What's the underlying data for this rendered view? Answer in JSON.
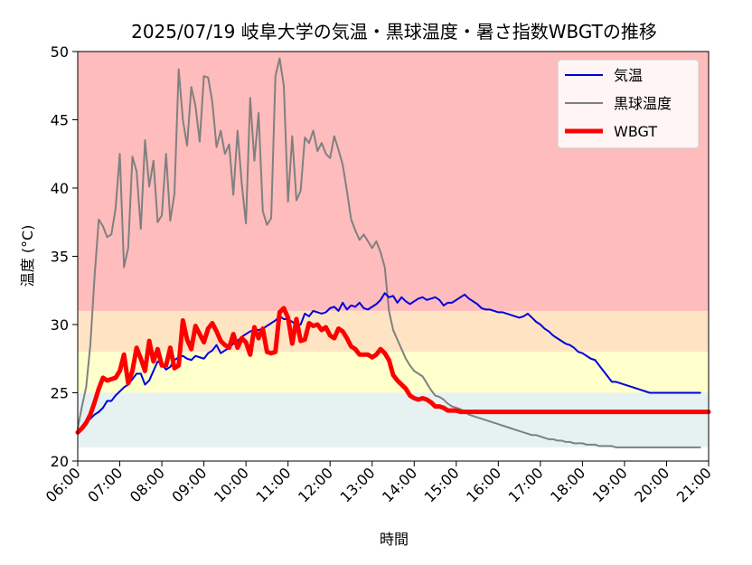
{
  "chart_data": {
    "type": "line",
    "title": "2025/07/19 岐阜大学の気温・黒球温度・暑さ指数WBGTの推移",
    "xlabel": "時間",
    "ylabel": "温度 (°C)",
    "ylim": [
      20,
      50
    ],
    "yticks": [
      "20",
      "25",
      "30",
      "35",
      "40",
      "45",
      "50"
    ],
    "xticks": [
      "06:00",
      "07:00",
      "08:00",
      "09:00",
      "10:00",
      "11:00",
      "12:00",
      "13:00",
      "14:00",
      "15:00",
      "16:00",
      "17:00",
      "18:00",
      "19:00",
      "20:00",
      "21:00"
    ],
    "xrange_hours": [
      6,
      21
    ],
    "x_hours": [
      6.0,
      6.1,
      6.2,
      6.3,
      6.4,
      6.5,
      6.6,
      6.7,
      6.8,
      6.9,
      7.0,
      7.1,
      7.2,
      7.3,
      7.4,
      7.5,
      7.6,
      7.7,
      7.8,
      7.9,
      8.0,
      8.1,
      8.2,
      8.3,
      8.4,
      8.5,
      8.6,
      8.7,
      8.8,
      8.9,
      9.0,
      9.1,
      9.2,
      9.3,
      9.4,
      9.5,
      9.6,
      9.7,
      9.8,
      9.9,
      10.0,
      10.1,
      10.2,
      10.3,
      10.4,
      10.5,
      10.6,
      10.7,
      10.8,
      10.9,
      11.0,
      11.1,
      11.2,
      11.3,
      11.4,
      11.5,
      11.6,
      11.7,
      11.8,
      11.9,
      12.0,
      12.1,
      12.2,
      12.3,
      12.4,
      12.5,
      12.6,
      12.7,
      12.8,
      12.9,
      13.0,
      13.1,
      13.2,
      13.3,
      13.4,
      13.5,
      13.6,
      13.7,
      13.8,
      13.9,
      14.0,
      14.1,
      14.2,
      14.3,
      14.4,
      14.5,
      14.6,
      14.7,
      14.8,
      14.9,
      15.0,
      15.1,
      15.2,
      15.3,
      15.4,
      15.5,
      15.6,
      15.7,
      15.8,
      15.9,
      16.0,
      16.1,
      16.2,
      16.3,
      16.4,
      16.5,
      16.6,
      16.7,
      16.8,
      16.9,
      17.0,
      17.1,
      17.2,
      17.3,
      17.4,
      17.5,
      17.6,
      17.7,
      17.8,
      17.9,
      18.0,
      18.1,
      18.2,
      18.3,
      18.4,
      18.5,
      18.6,
      18.7,
      18.8,
      18.9,
      19.0,
      19.1,
      19.2,
      19.3,
      19.4,
      19.5,
      19.6,
      19.7,
      19.8,
      19.9,
      20.0,
      20.1,
      20.2,
      20.3,
      20.4,
      20.5,
      20.6,
      20.7,
      20.8,
      20.9,
      21.0
    ],
    "zones": [
      {
        "from": 21,
        "to": 25,
        "color": "#e6f2f2"
      },
      {
        "from": 25,
        "to": 28,
        "color": "#ffffcc"
      },
      {
        "from": 28,
        "to": 31,
        "color": "#ffe4c4"
      },
      {
        "from": 31,
        "to": 50,
        "color": "#ffbcbc"
      }
    ],
    "legend_position": "top-right",
    "series": [
      {
        "name": "気温",
        "color": "#0000dd",
        "width": 2,
        "values": [
          22.0,
          22.4,
          22.8,
          23.1,
          23.4,
          23.6,
          23.9,
          24.4,
          24.4,
          24.8,
          25.1,
          25.4,
          25.6,
          26.0,
          26.4,
          26.4,
          25.6,
          25.9,
          26.6,
          27.3,
          27.1,
          26.7,
          26.9,
          27.4,
          27.6,
          27.7,
          27.5,
          27.4,
          27.7,
          27.6,
          27.5,
          27.9,
          28.1,
          28.5,
          27.9,
          28.1,
          28.3,
          28.6,
          28.8,
          29.1,
          29.3,
          29.5,
          29.6,
          29.6,
          29.7,
          29.9,
          30.1,
          30.3,
          30.6,
          30.4,
          30.4,
          30.2,
          30.0,
          30.0,
          30.8,
          30.6,
          31.0,
          30.9,
          30.8,
          30.9,
          31.2,
          31.3,
          31.0,
          31.6,
          31.1,
          31.4,
          31.3,
          31.6,
          31.2,
          31.1,
          31.3,
          31.5,
          31.8,
          32.3,
          32.0,
          32.1,
          31.6,
          32.0,
          31.7,
          31.5,
          31.7,
          31.9,
          32.0,
          31.8,
          31.9,
          32.0,
          31.8,
          31.4,
          31.6,
          31.6,
          31.8,
          32.0,
          32.2,
          31.9,
          31.7,
          31.5,
          31.2,
          31.1,
          31.1,
          31.0,
          30.9,
          30.9,
          30.8,
          30.7,
          30.6,
          30.5,
          30.6,
          30.8,
          30.5,
          30.2,
          30.0,
          29.7,
          29.5,
          29.2,
          29.0,
          28.8,
          28.6,
          28.5,
          28.3,
          28.0,
          27.9,
          27.7,
          27.5,
          27.4,
          27.0,
          26.6,
          26.2,
          25.8,
          25.8,
          25.7,
          25.6,
          25.5,
          25.4,
          25.3,
          25.2,
          25.1,
          25.0,
          25.0,
          25.0,
          25.0,
          25.0,
          25.0,
          25.0,
          25.0,
          25.0,
          25.0,
          25.0,
          25.0,
          25.0
        ]
      },
      {
        "name": "黒球温度",
        "color": "#808080",
        "width": 2,
        "values": [
          22.4,
          24.0,
          25.4,
          28.5,
          33.5,
          37.7,
          37.2,
          36.4,
          36.6,
          38.5,
          42.5,
          34.2,
          35.6,
          42.3,
          41.2,
          37.0,
          43.5,
          40.1,
          42.0,
          37.5,
          38.0,
          42.5,
          37.6,
          39.6,
          48.7,
          45.0,
          43.1,
          47.4,
          46.0,
          43.4,
          48.2,
          48.1,
          46.3,
          43.0,
          44.2,
          42.5,
          43.2,
          39.5,
          44.2,
          40.3,
          37.4,
          46.6,
          42.0,
          45.5,
          38.3,
          37.3,
          37.8,
          48.2,
          49.5,
          47.5,
          39.0,
          43.8,
          39.1,
          39.8,
          43.7,
          43.3,
          44.2,
          42.7,
          43.3,
          42.5,
          42.2,
          43.8,
          42.8,
          41.7,
          39.8,
          37.7,
          36.9,
          36.2,
          36.6,
          36.1,
          35.6,
          36.1,
          35.3,
          34.2,
          31.0,
          29.6,
          28.9,
          28.2,
          27.5,
          27.0,
          26.6,
          26.4,
          26.2,
          25.7,
          25.2,
          24.8,
          24.7,
          24.5,
          24.2,
          24.0,
          23.9,
          23.8,
          23.6,
          23.4,
          23.3,
          23.2,
          23.1,
          23.0,
          22.9,
          22.8,
          22.7,
          22.6,
          22.5,
          22.4,
          22.3,
          22.2,
          22.1,
          22.0,
          21.9,
          21.9,
          21.8,
          21.7,
          21.6,
          21.6,
          21.5,
          21.5,
          21.4,
          21.4,
          21.3,
          21.3,
          21.3,
          21.2,
          21.2,
          21.2,
          21.1,
          21.1,
          21.1,
          21.1,
          21.0,
          21.0,
          21.0,
          21.0,
          21.0,
          21.0,
          21.0,
          21.0,
          21.0,
          21.0,
          21.0,
          21.0,
          21.0,
          21.0,
          21.0,
          21.0,
          21.0,
          21.0,
          21.0,
          21.0,
          21.0
        ]
      },
      {
        "name": "WBGT",
        "color": "#ff0000",
        "width": 5,
        "values": [
          22.1,
          22.4,
          22.8,
          23.4,
          24.3,
          25.3,
          26.1,
          25.9,
          26.0,
          26.1,
          26.6,
          27.8,
          25.7,
          26.6,
          28.3,
          27.5,
          26.6,
          28.8,
          27.3,
          28.2,
          27.0,
          27.0,
          28.3,
          26.8,
          27.0,
          30.3,
          28.9,
          28.2,
          29.9,
          29.3,
          28.7,
          29.7,
          30.1,
          29.5,
          28.8,
          28.5,
          28.3,
          29.3,
          28.3,
          29.0,
          28.7,
          27.8,
          29.8,
          29.0,
          29.7,
          28.0,
          27.9,
          28.0,
          30.9,
          31.2,
          30.5,
          28.6,
          30.4,
          28.8,
          28.9,
          30.1,
          29.9,
          30.0,
          29.6,
          29.8,
          29.2,
          29.0,
          29.7,
          29.5,
          29.0,
          28.4,
          28.2,
          27.8,
          27.8,
          27.8,
          27.6,
          27.8,
          28.2,
          27.9,
          27.4,
          26.3,
          25.9,
          25.6,
          25.3,
          24.8,
          24.6,
          24.5,
          24.6,
          24.5,
          24.3,
          24.0,
          24.0,
          23.9,
          23.7,
          23.7,
          23.7,
          23.6,
          23.6,
          23.6,
          23.6,
          23.6,
          23.6,
          23.6,
          23.6,
          23.6,
          23.6,
          23.6,
          23.6,
          23.6,
          23.6,
          23.6,
          23.6,
          23.6,
          23.6,
          23.6,
          23.6,
          23.6,
          23.6,
          23.6,
          23.6,
          23.6,
          23.6,
          23.6,
          23.6,
          23.6,
          23.6,
          23.6,
          23.6,
          23.6,
          23.6,
          23.6,
          23.6,
          23.6,
          23.6,
          23.6,
          23.6,
          23.6,
          23.6,
          23.6,
          23.6,
          23.6,
          23.6,
          23.6,
          23.6,
          23.6,
          23.6,
          23.6,
          23.6,
          23.6,
          23.6,
          23.6,
          23.6,
          23.6,
          23.6,
          23.6,
          23.6
        ]
      }
    ]
  }
}
